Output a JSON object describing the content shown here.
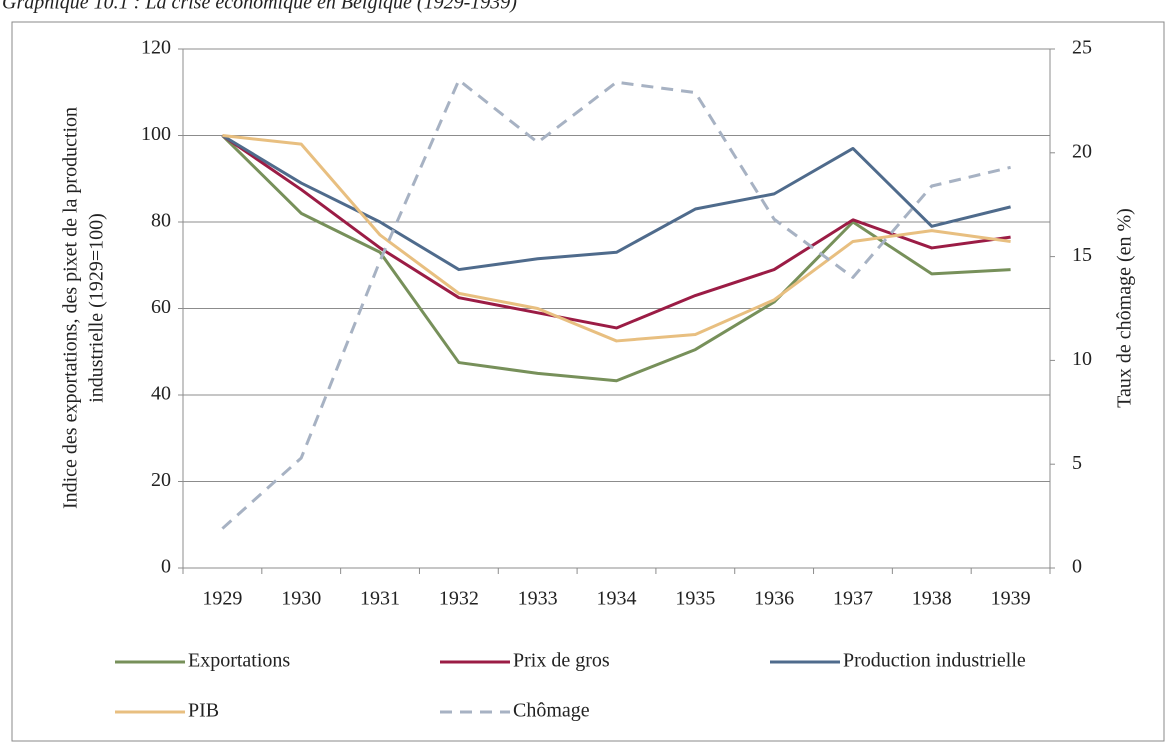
{
  "chart_data": {
    "type": "line",
    "title": "Graphique 10.1 : La crise économique en Belgique (1929-1939)",
    "y_label": [
      "Indice des exportations, des pixet de la production",
      "industrielle (1929=100)"
    ],
    "y2_label": "Taux de chômage (en %)",
    "categories": [
      "1929",
      "1930",
      "1931",
      "1932",
      "1933",
      "1934",
      "1935",
      "1936",
      "1937",
      "1938",
      "1939"
    ],
    "ylim": [
      0,
      120
    ],
    "yticks": [
      0,
      20,
      40,
      60,
      80,
      100,
      120
    ],
    "y2lim": [
      0,
      25
    ],
    "y2ticks": [
      0,
      5,
      10,
      15,
      20,
      25
    ],
    "grid": true,
    "series": [
      {
        "name": "Exportations",
        "color": "#77905a",
        "values": [
          100,
          82,
          73,
          47.5,
          45,
          43.3,
          50.5,
          61.5,
          80,
          68,
          69
        ]
      },
      {
        "name": "Prix de gros",
        "color": "#9b1c45",
        "values": [
          100,
          87.5,
          74,
          62.5,
          59,
          55.5,
          63,
          69,
          80.5,
          74,
          76.5
        ]
      },
      {
        "name": "Production industrielle",
        "color": "#4f6b8c",
        "values": [
          100,
          89,
          80,
          69,
          71.5,
          73,
          83,
          86.5,
          97,
          79,
          83.5
        ]
      },
      {
        "name": "PIB",
        "color": "#e8bf80",
        "values": [
          100,
          98,
          77,
          63.5,
          60,
          52.5,
          54,
          62,
          75.5,
          78,
          75.5
        ]
      },
      {
        "name": "Chômage",
        "color": "#a7b2c3",
        "dashed": true,
        "axis": "y2",
        "values": [
          1.9,
          5.3,
          14.8,
          23.5,
          20.5,
          23.4,
          22.9,
          16.8,
          14.0,
          18.4,
          19.3
        ]
      }
    ]
  }
}
